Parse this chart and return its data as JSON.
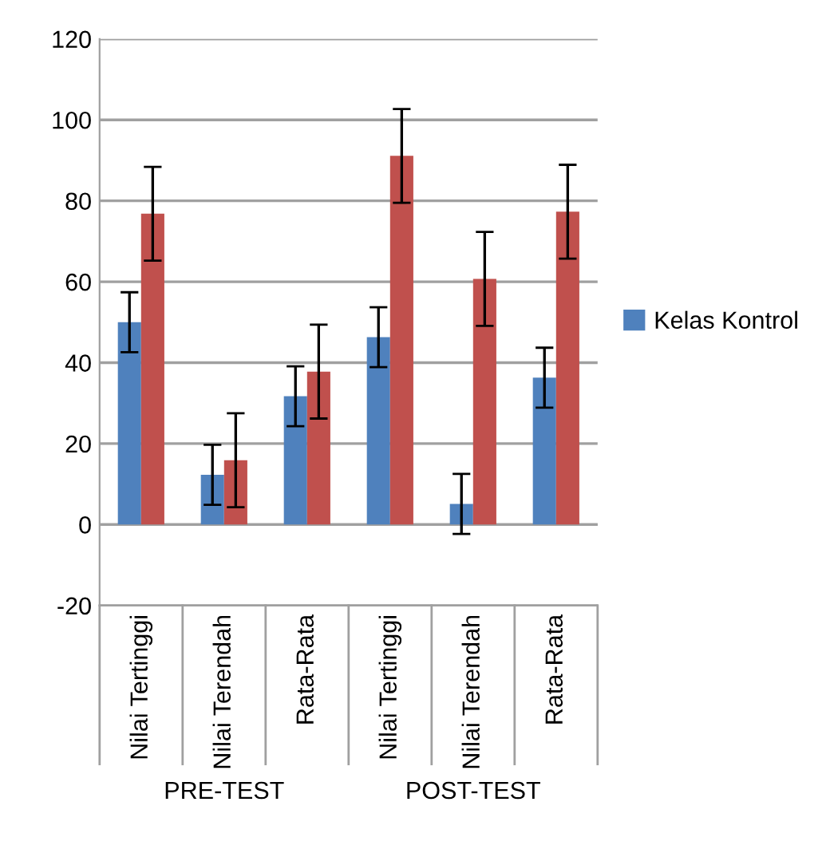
{
  "chart_data": {
    "type": "bar",
    "categories": [
      "Nilai Tertinggi",
      "Nilai Terendah",
      "Rata-Rata",
      "Nilai Tertinggi",
      "Nilai Terendah",
      "Rata-Rata"
    ],
    "series": [
      {
        "name": "Kelas Kontrol",
        "color": "#4f81bd",
        "values": [
          50,
          12.3,
          31.7,
          46.3,
          5.1,
          36.3
        ],
        "errors": [
          7.4,
          7.4,
          7.4,
          7.4,
          7.4,
          7.4
        ]
      },
      {
        "color": "#c0504d",
        "values": [
          76.8,
          15.9,
          37.8,
          91.1,
          60.7,
          77.3
        ],
        "errors": [
          11.6,
          11.6,
          11.6,
          11.6,
          11.6,
          11.6
        ]
      }
    ],
    "annotations": [
      "PRE-TEST",
      "POST-TEST"
    ],
    "ylim": [
      -20,
      120
    ],
    "yticks": [
      -20,
      0,
      20,
      40,
      60,
      80,
      100,
      120
    ],
    "grid": "y",
    "legend": "right"
  }
}
